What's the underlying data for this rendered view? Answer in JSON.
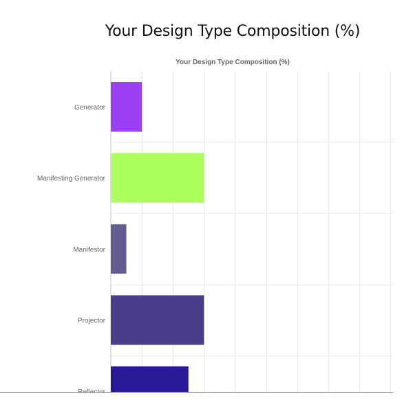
{
  "page": {
    "title": "Your Design Type Composition (%)"
  },
  "chart_data": {
    "type": "bar",
    "orientation": "horizontal",
    "title": "Your Design Type Composition (%)",
    "categories": [
      "Generator",
      "Manifesting Generator",
      "Manifestor",
      "Projector",
      "Reflector"
    ],
    "values": [
      10,
      30,
      5,
      30,
      25
    ],
    "colors": [
      "#9b40f5",
      "#adff5e",
      "#635c91",
      "#4a3e8a",
      "#2b1b9a"
    ],
    "xlim": [
      0,
      90
    ],
    "x_grid_step": 10,
    "grid": true,
    "legend": "none"
  }
}
